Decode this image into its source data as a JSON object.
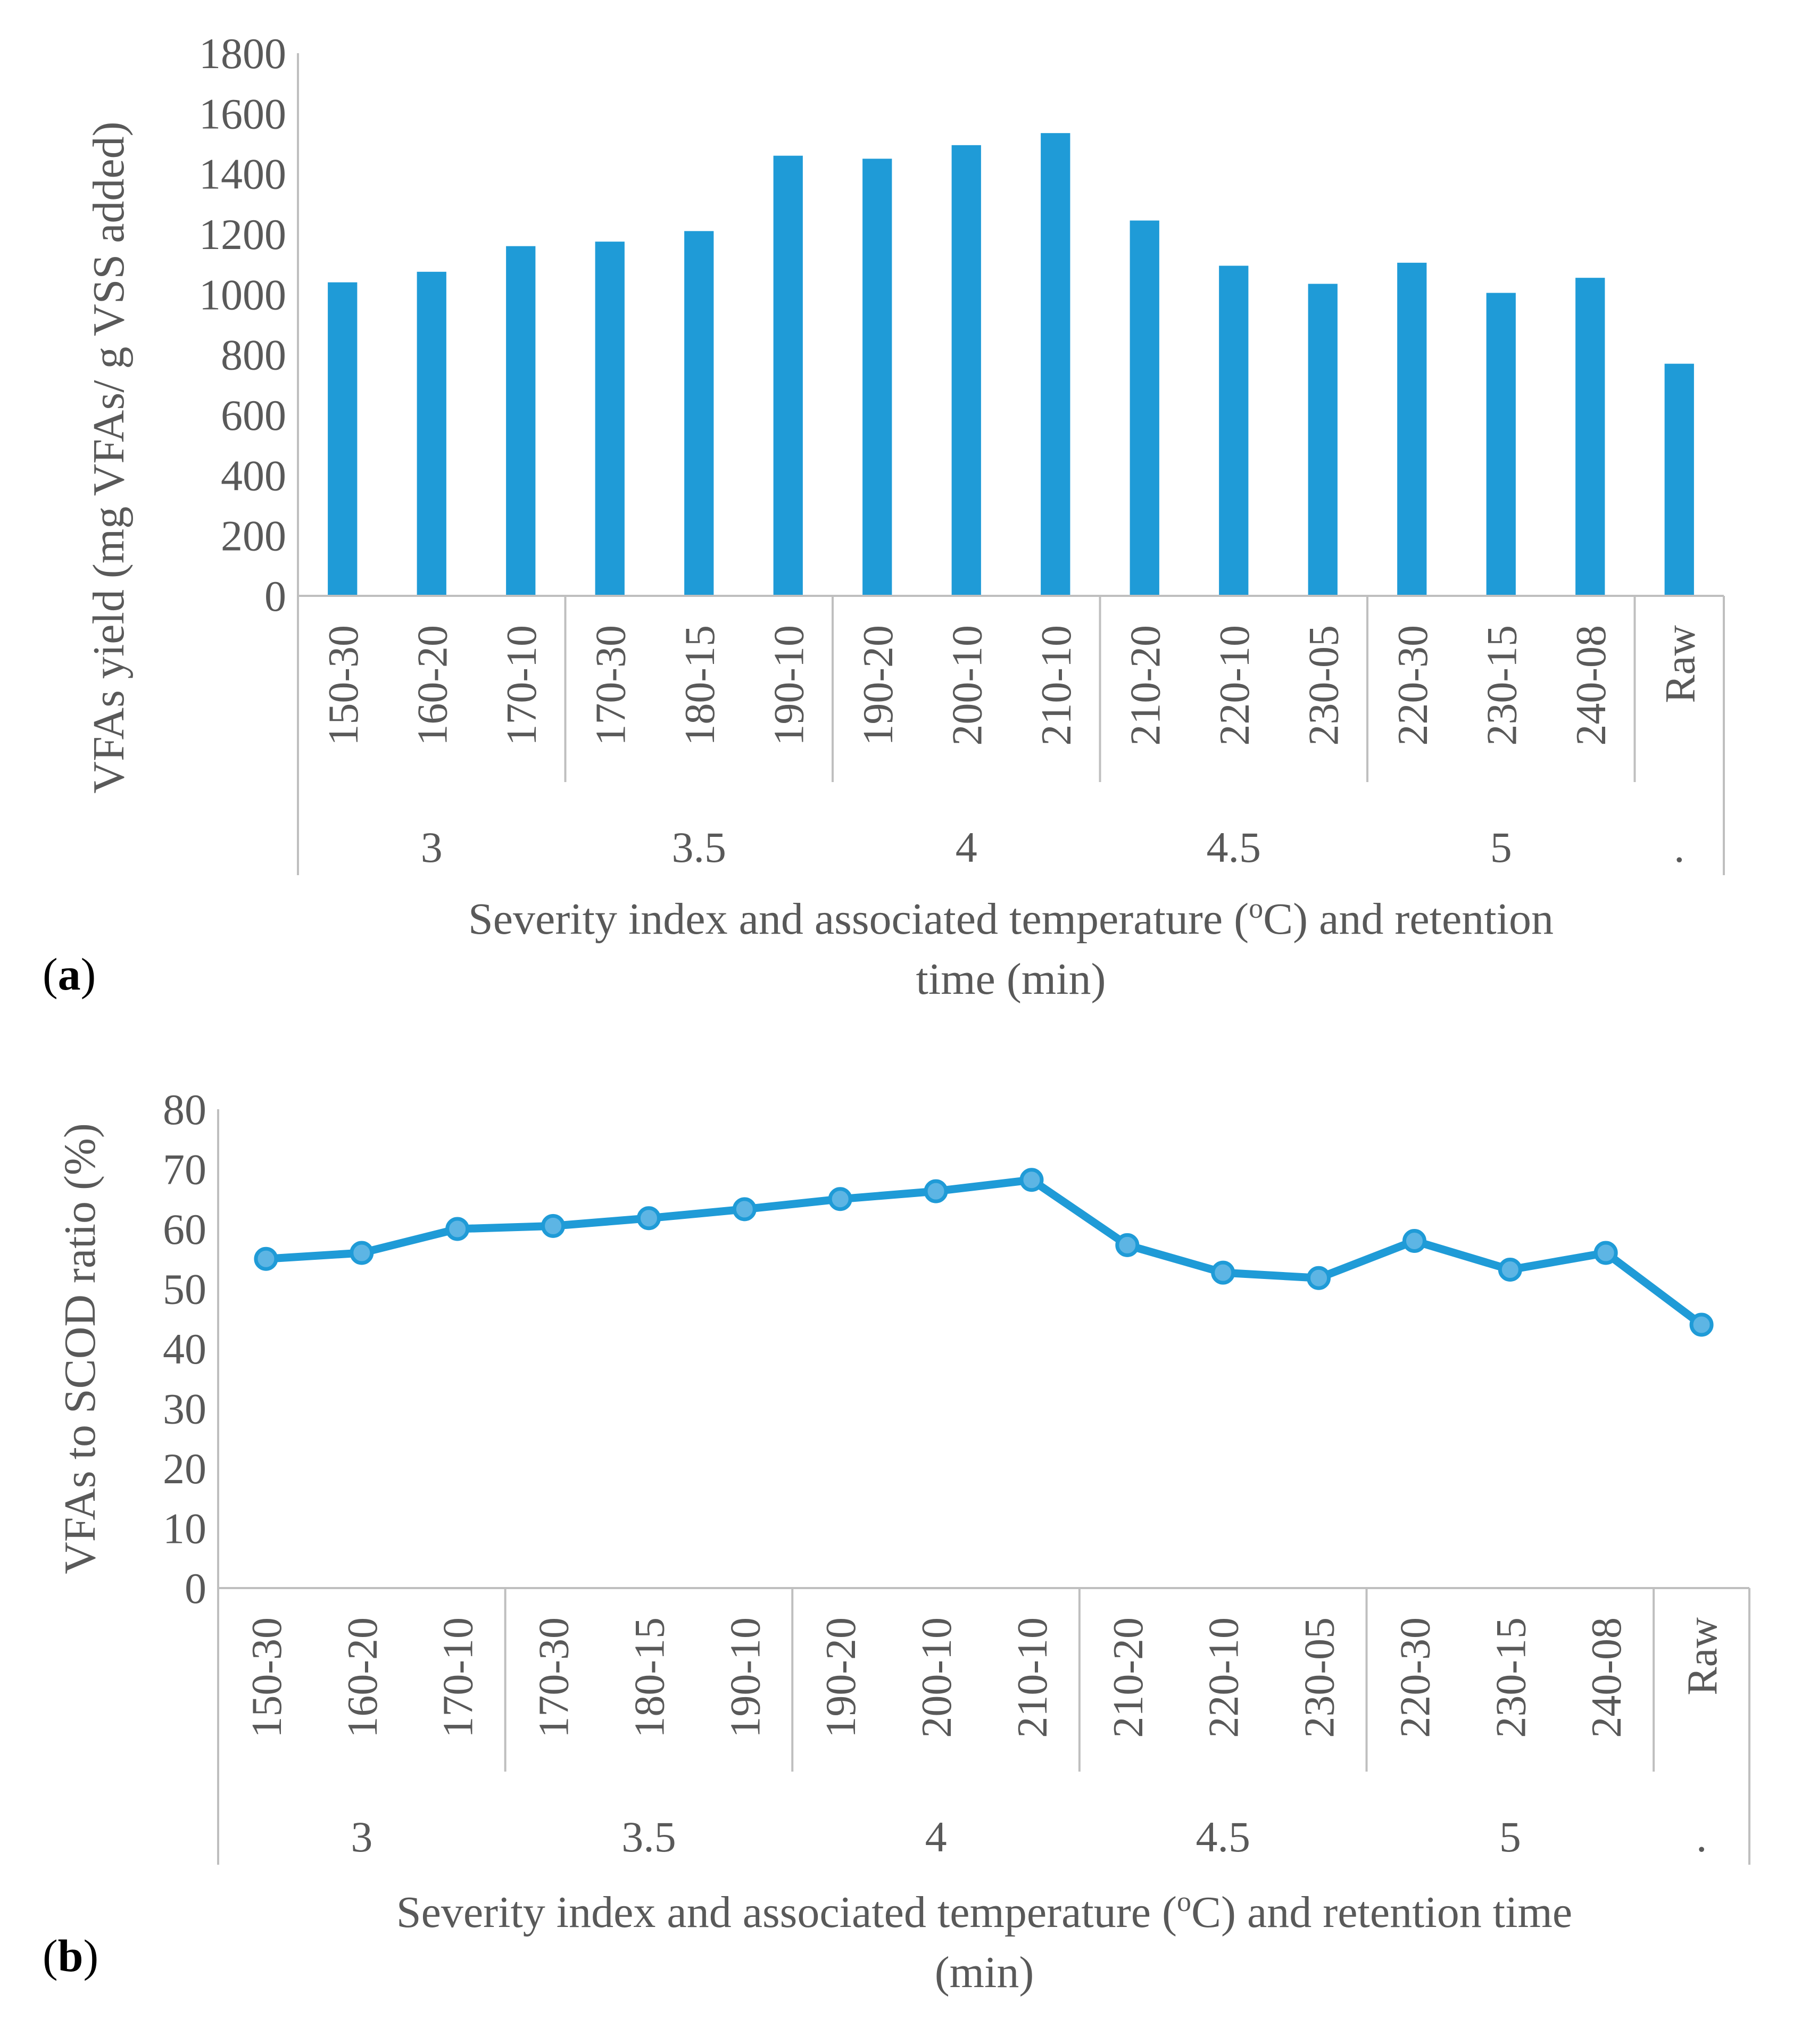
{
  "panel_labels": {
    "a": "a",
    "b": "b"
  },
  "colors": {
    "series": "#1F9BD7",
    "axis": "#BFBFBF",
    "text": "#595959"
  },
  "chart_data": [
    {
      "type": "bar",
      "panel": "a",
      "title": "",
      "ylabel": "VFAs yield (mg VFAs/ g VSS added)",
      "xlabel_lines": [
        "Severity index and associated temperature (",
        "C) and retention",
        "time (min)"
      ],
      "xlabel_sup": "o",
      "ylim": [
        0,
        1800
      ],
      "yticks": [
        "0",
        "200",
        "400",
        "600",
        "800",
        "1000",
        "1200",
        "1400",
        "1600",
        "1800"
      ],
      "categories": [
        "150-30",
        "160-20",
        "170-10",
        "170-30",
        "180-15",
        "190-10",
        "190-20",
        "200-10",
        "210-10",
        "210-20",
        "220-10",
        "230-05",
        "220-30",
        "230-15",
        "240-08",
        "Raw"
      ],
      "groups": [
        {
          "label": "3",
          "count": 3
        },
        {
          "label": "3.5",
          "count": 3
        },
        {
          "label": "4",
          "count": 3
        },
        {
          "label": "4.5",
          "count": 3
        },
        {
          "label": "5",
          "count": 3
        },
        {
          "label": ".",
          "count": 1
        }
      ],
      "values": [
        1040,
        1075,
        1160,
        1175,
        1210,
        1460,
        1450,
        1495,
        1535,
        1245,
        1095,
        1035,
        1105,
        1005,
        1055,
        770
      ],
      "grid": false
    },
    {
      "type": "line",
      "panel": "b",
      "title": "",
      "ylabel": "VFAs to SCOD ratio (%)",
      "xlabel_lines": [
        "Severity index and associated temperature (",
        "C) and retention time",
        "(min)"
      ],
      "xlabel_sup": "o",
      "ylim": [
        0,
        80
      ],
      "yticks": [
        "0",
        "10",
        "20",
        "30",
        "40",
        "50",
        "60",
        "70",
        "80"
      ],
      "categories": [
        "150-30",
        "160-20",
        "170-10",
        "170-30",
        "180-15",
        "190-10",
        "190-20",
        "200-10",
        "210-10",
        "210-20",
        "220-10",
        "230-05",
        "220-30",
        "230-15",
        "240-08",
        "Raw"
      ],
      "groups": [
        {
          "label": "3",
          "count": 3
        },
        {
          "label": "3.5",
          "count": 3
        },
        {
          "label": "4",
          "count": 3
        },
        {
          "label": "4.5",
          "count": 3
        },
        {
          "label": "5",
          "count": 3
        },
        {
          "label": ".",
          "count": 1
        }
      ],
      "values": [
        55,
        56,
        60,
        60.5,
        61.8,
        63.3,
        65,
        66.3,
        68.2,
        57.3,
        52.7,
        51.8,
        58,
        53.2,
        56,
        44
      ],
      "grid": false
    }
  ]
}
